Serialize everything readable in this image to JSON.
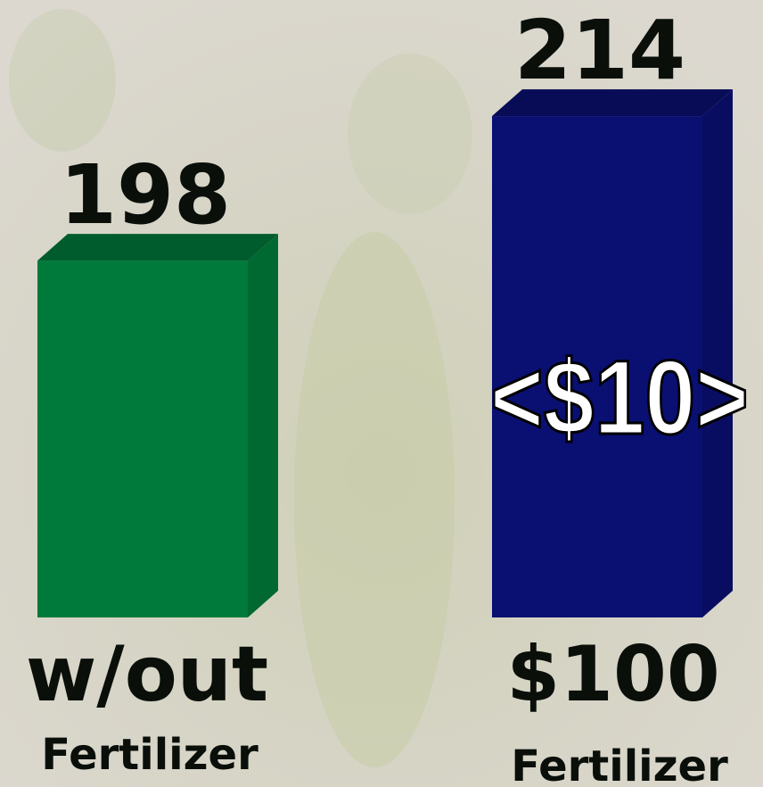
{
  "chart_data": {
    "type": "bar3d",
    "categories": [
      "w/out",
      "$100"
    ],
    "category_sublabels": [
      "Fertilizer",
      "Fertilizer"
    ],
    "values": [
      198,
      214
    ],
    "colors": [
      "#007a3a",
      "#0a0f72"
    ],
    "ylim": [
      158.5,
      219.5
    ],
    "annotation": "<$10>"
  }
}
